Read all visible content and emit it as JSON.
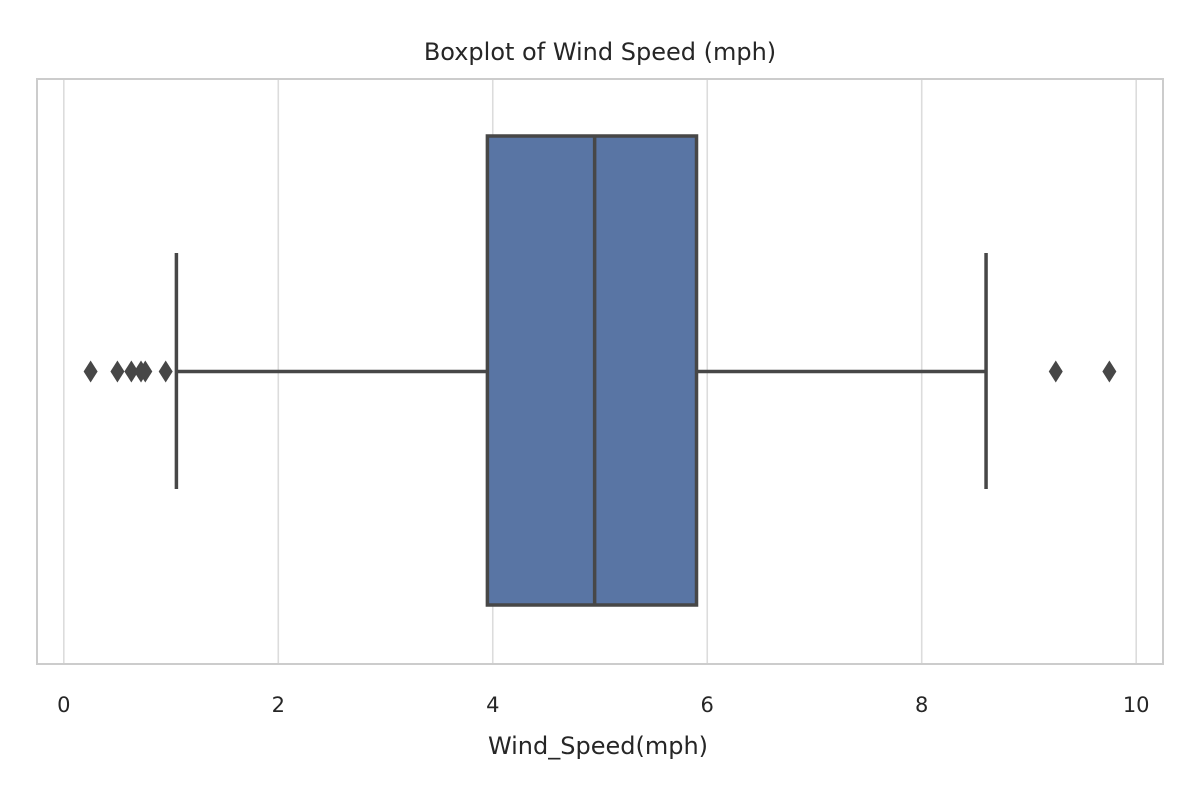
{
  "chart_data": {
    "type": "box",
    "title": "Boxplot of Wind Speed (mph)",
    "xlabel": "Wind_Speed(mph)",
    "ylabel": "",
    "xlim": [
      -0.25,
      10.25
    ],
    "xticks": [
      0,
      2,
      4,
      6,
      8,
      10
    ],
    "grid": "vertical",
    "orientation": "horizontal",
    "box": {
      "whisker_low": 1.05,
      "q1": 3.95,
      "median": 4.95,
      "q3": 5.9,
      "whisker_high": 8.6
    },
    "outliers": [
      0.25,
      0.5,
      0.63,
      0.72,
      0.76,
      0.95,
      9.25,
      9.75
    ]
  },
  "colors": {
    "box_fill": "#5975a4",
    "line": "#474747",
    "grid": "#dcdcdc",
    "frame": "#cccccc",
    "text": "#262626",
    "background": "#ffffff"
  }
}
